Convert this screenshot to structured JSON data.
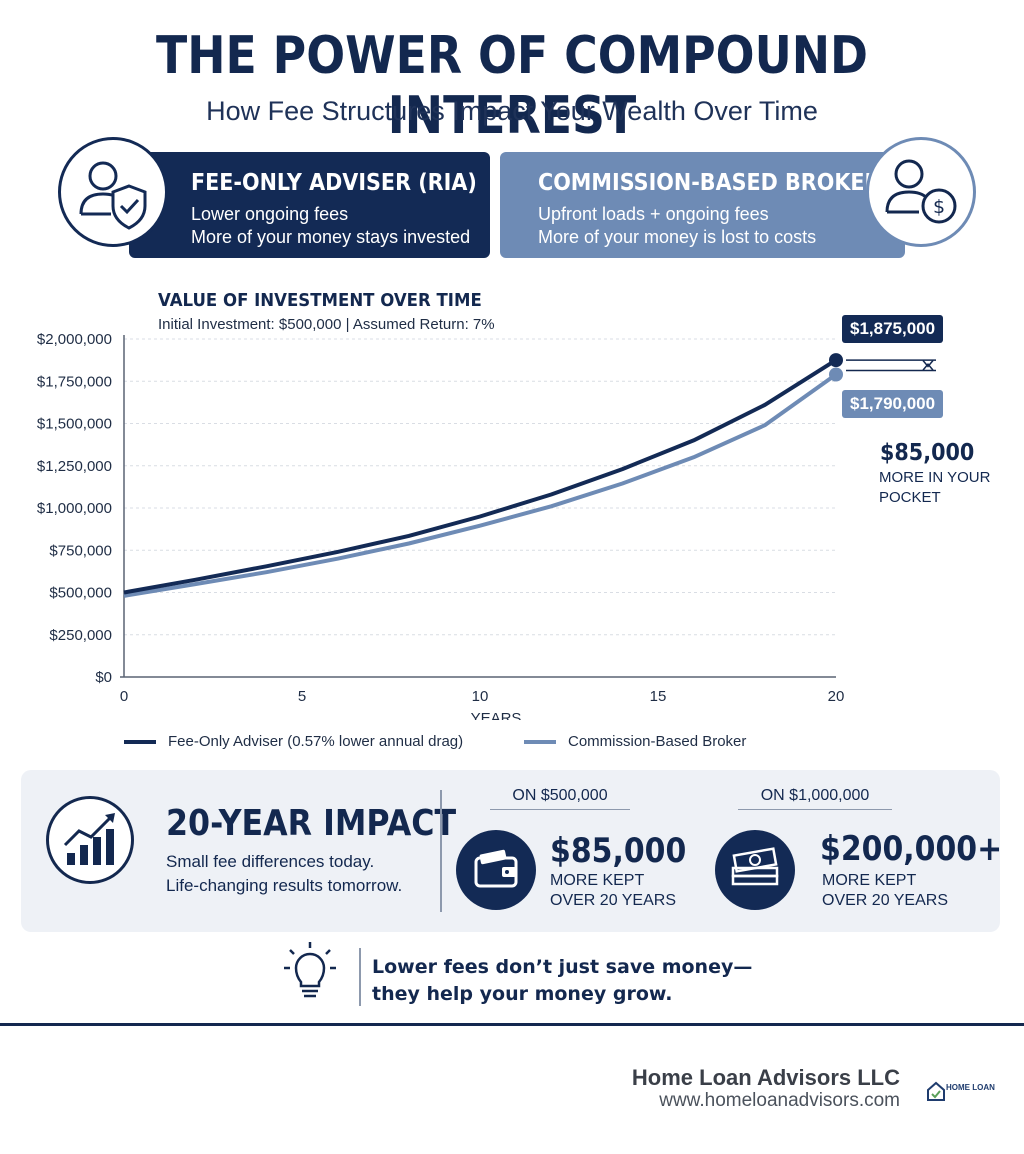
{
  "header": {
    "title": "THE POWER OF COMPOUND INTEREST",
    "subtitle": "How Fee Structures Impact Your Wealth Over Time"
  },
  "cards": {
    "fee_only": {
      "title": "FEE-ONLY ADVISER (RIA)",
      "line1": "Lower ongoing fees",
      "line2": "More of your money stays invested",
      "icon": "person-shield-check-icon"
    },
    "commission": {
      "title": "COMMISSION-BASED BROKER",
      "line1": "Upfront loads + ongoing fees",
      "line2": "More of your money is lost to costs",
      "icon": "person-dollar-coin-icon"
    }
  },
  "chart_header": {
    "title": "VALUE OF INVESTMENT OVER TIME",
    "params": "Initial Investment: $500,000  |  Assumed Return: 7%"
  },
  "chart_data": {
    "type": "line",
    "title": "VALUE OF INVESTMENT OVER TIME",
    "xlabel": "YEARS",
    "ylabel": "",
    "xlim": [
      0,
      20
    ],
    "ylim": [
      0,
      2000000
    ],
    "x_ticks": [
      "0",
      "5",
      "10",
      "15",
      "20"
    ],
    "y_ticks": [
      "$0",
      "$250,000",
      "$500,000",
      "$750,000",
      "$1,000,000",
      "$1,250,000",
      "$1,500,000",
      "$1,750,000",
      "$2,000,000"
    ],
    "grid": true,
    "legend_position": "bottom",
    "x": [
      0,
      2,
      4,
      6,
      8,
      10,
      12,
      14,
      16,
      18,
      20
    ],
    "series": [
      {
        "name": "Fee-Only Adviser (0.57% lower annual drag)",
        "color": "#132a55",
        "values": [
          500000,
          575000,
          655000,
          740000,
          835000,
          950000,
          1080000,
          1230000,
          1400000,
          1610000,
          1875000
        ],
        "end_label": "$1,875,000"
      },
      {
        "name": "Commission-Based Broker",
        "color": "#6e8bb5",
        "values": [
          480000,
          550000,
          620000,
          700000,
          790000,
          895000,
          1010000,
          1145000,
          1300000,
          1490000,
          1790000
        ],
        "end_label": "$1,790,000"
      }
    ],
    "annotation": {
      "value": "$85,000",
      "line1": "MORE IN YOUR",
      "line2": "POCKET"
    }
  },
  "impact": {
    "title": "20-YEAR IMPACT",
    "line1": "Small fee differences today.",
    "line2": "Life-changing results tomorrow.",
    "icon": "rising-bar-chart-icon",
    "scenarios": [
      {
        "label": "ON $500,000",
        "value": "$85,000",
        "line1": "MORE KEPT",
        "line2": "OVER 20 YEARS",
        "icon": "wallet-icon"
      },
      {
        "label": "ON $1,000,000",
        "value": "$200,000+",
        "line1": "MORE KEPT",
        "line2": "OVER 20 YEARS",
        "icon": "money-stack-icon"
      }
    ]
  },
  "tip": {
    "line1": "Lower fees don’t just save money—",
    "line2": "they help your money grow.",
    "icon": "lightbulb-icon"
  },
  "footer": {
    "company": "Home Loan Advisors LLC",
    "url": "www.homeloanadvisors.com",
    "logo_text": "HOME LOAN"
  },
  "colors": {
    "navy": "#132a55",
    "steel_blue": "#6e8bb5",
    "panel_bg": "#eef1f6"
  }
}
